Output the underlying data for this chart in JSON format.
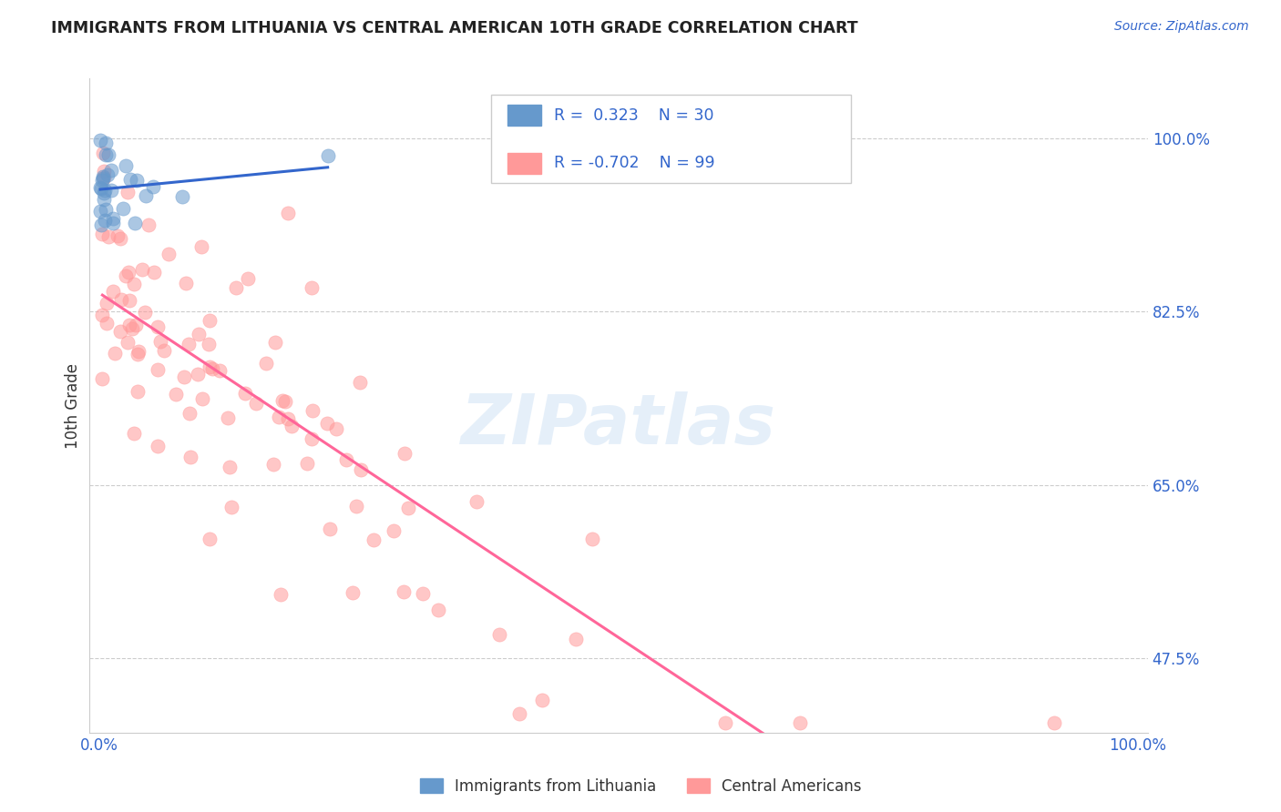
{
  "title": "IMMIGRANTS FROM LITHUANIA VS CENTRAL AMERICAN 10TH GRADE CORRELATION CHART",
  "source": "Source: ZipAtlas.com",
  "ylabel": "10th Grade",
  "xlim": [
    0.0,
    1.0
  ],
  "ylim": [
    0.4,
    1.06
  ],
  "xtick_labels": [
    "0.0%",
    "100.0%"
  ],
  "ytick_labels": [
    "47.5%",
    "65.0%",
    "82.5%",
    "100.0%"
  ],
  "ytick_positions": [
    0.475,
    0.65,
    0.825,
    1.0
  ],
  "color_blue": "#6699CC",
  "color_pink": "#FF9999",
  "color_line_blue": "#3366CC",
  "color_line_pink": "#FF6699",
  "color_text_blue": "#3366CC",
  "color_text_dark": "#333333",
  "watermark": "ZIPatlas",
  "legend_r1": "R =  0.323",
  "legend_n1": "N = 30",
  "legend_r2": "R = -0.702",
  "legend_n2": "N = 99",
  "blue_N": 30,
  "blue_R": 0.323,
  "pink_N": 99,
  "pink_R": -0.702
}
